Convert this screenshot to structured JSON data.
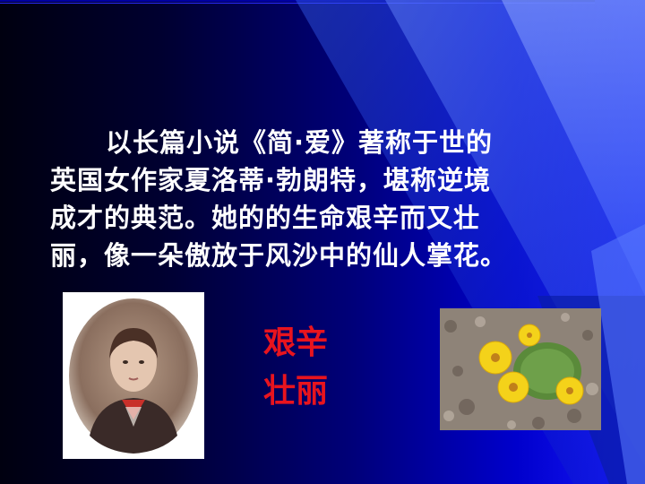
{
  "slide": {
    "body_lines": [
      "以长篇小说《简·爱》著称于世的",
      "英国女作家夏洛蒂·勃朗特，堪称逆境",
      "成才的典范。她的的生命艰辛而又壮",
      "丽，像一朵傲放于风沙中的仙人掌花。"
    ],
    "keywords": [
      "艰辛",
      "壮丽"
    ],
    "images": {
      "portrait_icon": "charlotte-bronte-portrait",
      "flower_icon": "cactus-flower-photo"
    },
    "colors": {
      "background_dark": "#000010",
      "background_light": "#1a1aff",
      "body_text": "#ffffff",
      "keyword_text": "#e8141e"
    }
  }
}
